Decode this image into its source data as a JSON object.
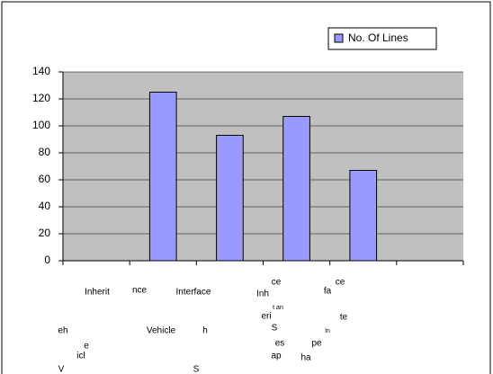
{
  "chart_data": {
    "type": "bar",
    "categories": [
      null,
      null,
      null,
      null,
      null,
      null
    ],
    "series": [
      {
        "name": "No. Of Lines",
        "color": "#9999ff",
        "values": [
          null,
          125,
          93,
          107,
          67,
          null
        ]
      }
    ],
    "ylim": [
      0,
      140
    ],
    "yticks": [
      0,
      20,
      40,
      60,
      80,
      100,
      120,
      140
    ],
    "grid": true,
    "legend": "top-right",
    "annotations": [
      "Inherit",
      "nce",
      "Interface",
      "Inh",
      "ce",
      "fa",
      "ce",
      "t an",
      "eri",
      "te",
      "eh",
      "Vehicle",
      "h",
      "S",
      "In",
      "e",
      "es",
      "pe",
      "icl",
      "ap",
      "ha",
      "V",
      "S"
    ]
  }
}
